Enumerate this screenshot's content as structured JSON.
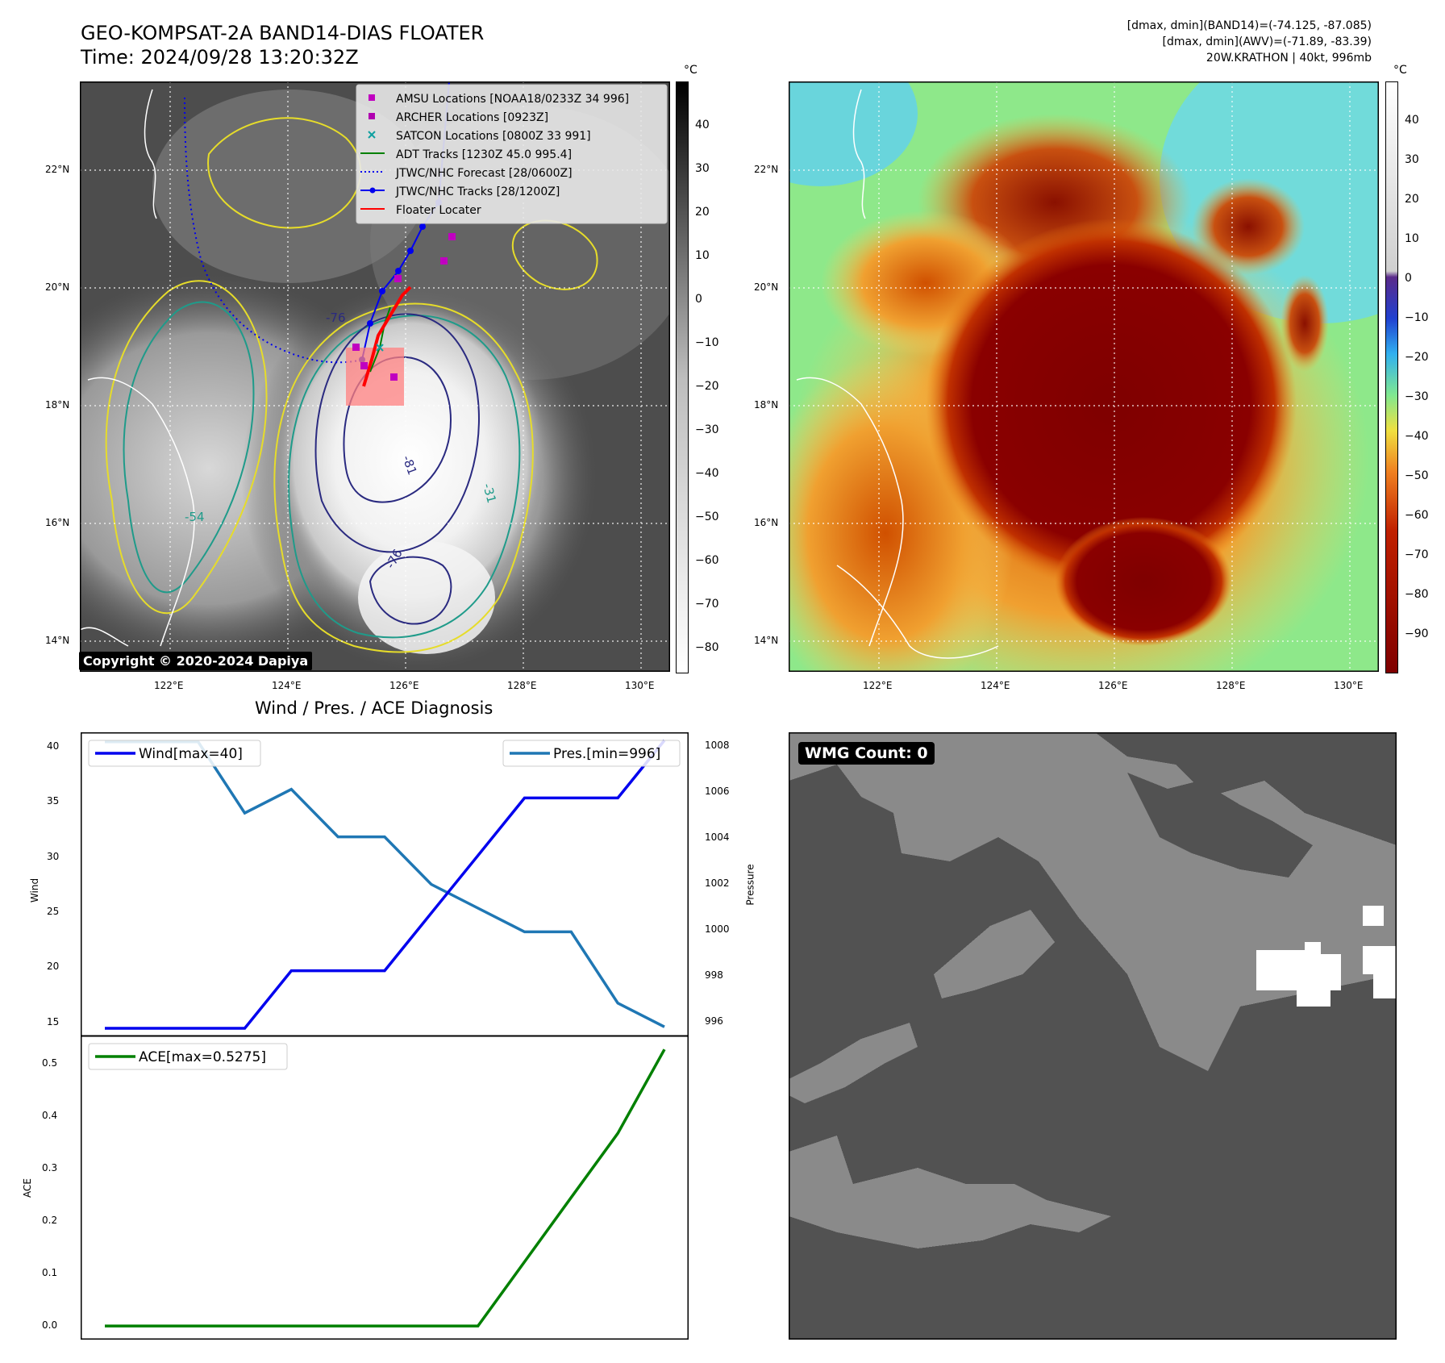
{
  "header": {
    "title_line1": "GEO-KOMPSAT-2A BAND14-DIAS FLOATER",
    "title_line2": "Time: 2024/09/28 13:20:32Z",
    "info_line1": "[dmax, dmin](BAND14)=(-74.125, -87.085)",
    "info_line2": "[dmax, dmin](AWV)=(-71.89, -83.39)",
    "info_line3": "20W.KRATHON | 40kt, 996mb"
  },
  "map": {
    "lon_labels": [
      "122°E",
      "124°E",
      "126°E",
      "128°E",
      "130°E"
    ],
    "lat_labels": [
      "22°N",
      "20°N",
      "18°N",
      "16°N",
      "14°N"
    ],
    "copyright": "Copyright © 2020-2024 Dapiya",
    "contour_labels": [
      "-76",
      "-81",
      "-31",
      "-54",
      "-76"
    ],
    "colors": {
      "amsu": "#c000c0",
      "archer": "#b000b0",
      "satcon": "#10a0a0",
      "adt": "#008000",
      "forecast": "#0000ee",
      "track": "#0000ee",
      "floater": "#ff0000",
      "contour_dark": "#2a2a80",
      "contour_teal": "#1f9b8a",
      "contour_yellow": "#e6dc2a"
    }
  },
  "legend": {
    "items": [
      {
        "label": "AMSU Locations [NOAA18/0233Z 34 996]",
        "symbol": "square",
        "color": "#c000c0"
      },
      {
        "label": "ARCHER Locations [0923Z]",
        "symbol": "square",
        "color": "#b000b0"
      },
      {
        "label": "SATCON Locations [0800Z 33 991]",
        "symbol": "x",
        "color": "#10a0a0"
      },
      {
        "label": "ADT Tracks [1230Z 45.0 995.4]",
        "symbol": "line",
        "color": "#008000"
      },
      {
        "label": "JTWC/NHC Forecast [28/0600Z]",
        "symbol": "dotted",
        "color": "#0000ee"
      },
      {
        "label": "JTWC/NHC Tracks [28/1200Z]",
        "symbol": "line-dot",
        "color": "#0000ee"
      },
      {
        "label": "Floater Locater",
        "symbol": "line",
        "color": "#ff0000"
      }
    ]
  },
  "colorbar1": {
    "unit": "°C",
    "ticks": [
      "40",
      "30",
      "20",
      "10",
      "0",
      "−10",
      "−20",
      "−30",
      "−40",
      "−50",
      "−60",
      "−70",
      "−80"
    ]
  },
  "colorbar2": {
    "unit": "°C",
    "ticks": [
      "40",
      "30",
      "20",
      "10",
      "0",
      "−10",
      "−20",
      "−30",
      "−40",
      "−50",
      "−60",
      "−70",
      "−80",
      "−90"
    ]
  },
  "diag": {
    "title": "Wind / Pres. / ACE Diagnosis",
    "wind_ylabel": "Wind",
    "pres_ylabel": "Pressure",
    "ace_ylabel": "ACE",
    "wind_legend": "Wind[max=40]",
    "pres_legend": "Pres.[min=996]",
    "ace_legend": "ACE[max=0.5275]",
    "wind_ticks": [
      "40",
      "35",
      "30",
      "25",
      "20",
      "15"
    ],
    "pres_ticks": [
      "1008",
      "1006",
      "1004",
      "1002",
      "1000",
      "998",
      "996"
    ],
    "ace_ticks": [
      "0.5",
      "0.4",
      "0.3",
      "0.2",
      "0.1",
      "0.0"
    ],
    "wind_color": "#0000ee",
    "pres_color": "#1f77b4",
    "ace_color": "#008000"
  },
  "wmg": {
    "label": "WMG Count: 0"
  },
  "chart_data": [
    {
      "type": "line",
      "x": [
        0,
        1,
        2,
        3,
        4,
        5,
        6,
        7,
        8,
        9,
        10,
        11,
        12
      ],
      "series": [
        {
          "name": "Wind[max=40]",
          "values": [
            15,
            15,
            15,
            15,
            20,
            20,
            20,
            25,
            30,
            35,
            35,
            35,
            40
          ]
        },
        {
          "name": "Pres.[min=996]",
          "values": [
            1008,
            1008,
            1008,
            1005,
            1006,
            1004,
            1004,
            1002,
            1001,
            1000,
            1000,
            997,
            996
          ]
        }
      ],
      "title": "Wind / Pres. / ACE Diagnosis",
      "ylabel": "Wind",
      "y2label": "Pressure",
      "ylim": [
        14.3,
        40.7
      ],
      "y2lim": [
        995.6,
        1008.4
      ]
    },
    {
      "type": "line",
      "x": [
        0,
        1,
        2,
        3,
        4,
        5,
        6,
        7,
        8,
        9,
        10,
        11,
        12
      ],
      "series": [
        {
          "name": "ACE[max=0.5275]",
          "values": [
            0,
            0,
            0,
            0,
            0,
            0,
            0,
            0,
            0,
            0.1225,
            0.245,
            0.3675,
            0.5275
          ]
        }
      ],
      "ylabel": "ACE",
      "ylim": [
        -0.026,
        0.554
      ]
    }
  ]
}
